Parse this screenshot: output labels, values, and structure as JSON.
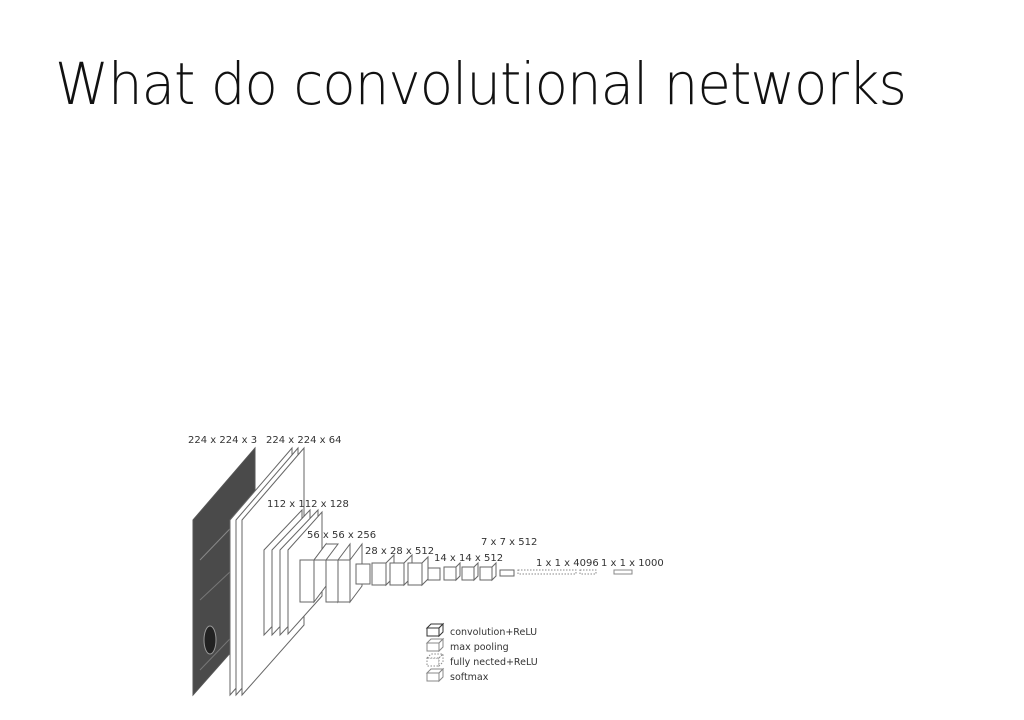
{
  "slide": {
    "title": "What do convolutional networks"
  },
  "diagram": {
    "layer_labels": [
      "224 x 224 x 3",
      "224 x 224 x 64",
      "112 x 112 x 128",
      "56 x 56 x 256",
      "28 x 28 x 512",
      "14 x 14 x 512",
      "7 x 7 x 512",
      "1 x 1 x 4096",
      "1 x 1 x 1000"
    ],
    "legend": [
      {
        "label": "convolution+ReLU",
        "style": "solid"
      },
      {
        "label": "max pooling",
        "style": "solid-light"
      },
      {
        "label": "fully nected+ReLU",
        "style": "dotted"
      },
      {
        "label": "softmax",
        "style": "solid-light"
      }
    ],
    "colors": {
      "stroke": "#666666",
      "input_image": "#4a4a4a",
      "background": "#ffffff"
    }
  }
}
